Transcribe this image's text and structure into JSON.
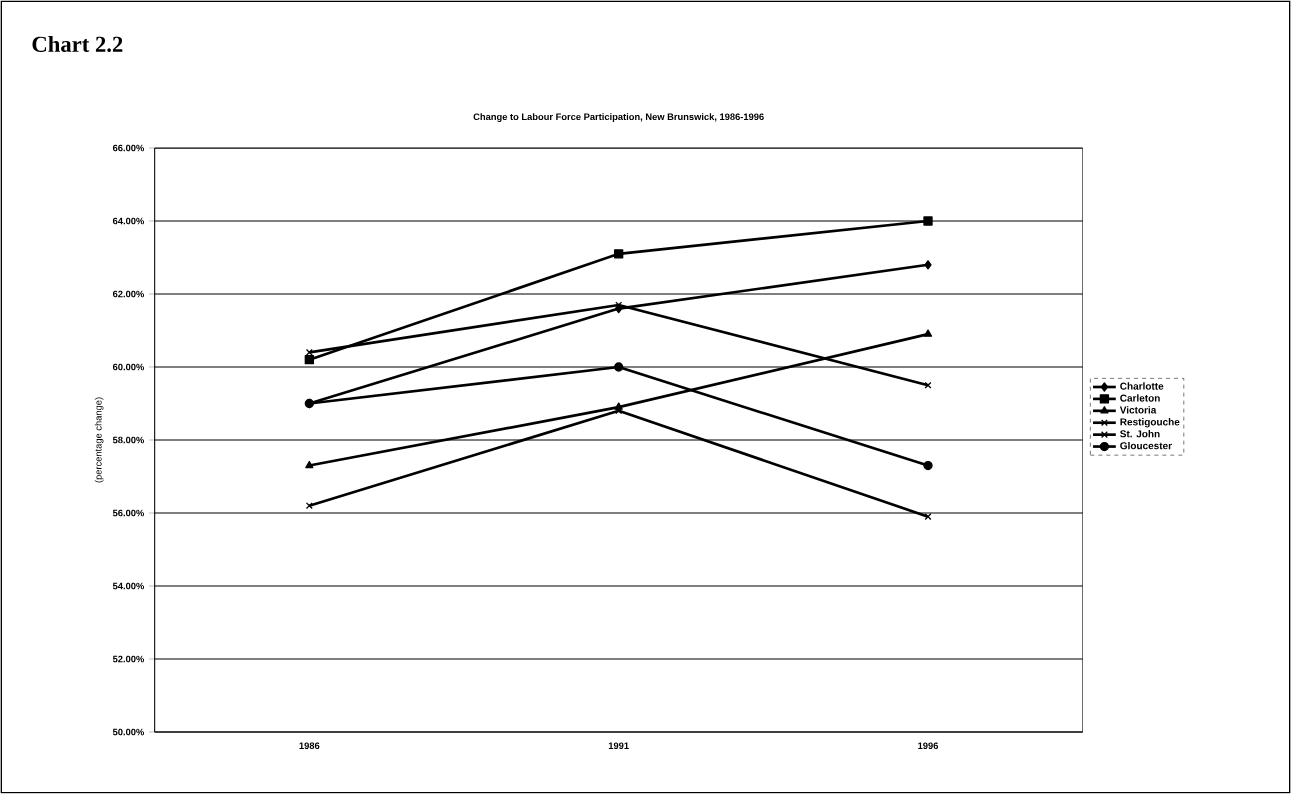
{
  "chart_data": {
    "type": "line",
    "title": "Change to Labour Force Participation, New Brunswick, 1986-1996",
    "annotations": [
      "Chart 2.2"
    ],
    "ylabel": "(percentage change)",
    "categories": [
      "1986",
      "1991",
      "1996"
    ],
    "series": [
      {
        "name": "Charlotte",
        "color": "#000000",
        "marker": "diamond",
        "values": [
          59.0,
          61.6,
          62.8
        ]
      },
      {
        "name": "Carleton",
        "color": "#000000",
        "marker": "square",
        "values": [
          60.2,
          63.1,
          64.0
        ]
      },
      {
        "name": "Victoria",
        "color": "#000000",
        "marker": "triangle",
        "values": [
          57.3,
          58.9,
          60.9
        ]
      },
      {
        "name": "Restigouche",
        "color": "#000000",
        "marker": "cross",
        "values": [
          56.2,
          58.8,
          55.9
        ]
      },
      {
        "name": "St. John",
        "color": "#000000",
        "marker": "cross",
        "values": [
          60.4,
          61.7,
          59.5
        ]
      },
      {
        "name": "Gloucester",
        "color": "#000000",
        "marker": "circle",
        "values": [
          59.0,
          60.0,
          57.3
        ]
      }
    ],
    "ylim": [
      50,
      66
    ],
    "yticks": [
      {
        "value": 50,
        "label": "50.00%"
      },
      {
        "value": 52,
        "label": "52.00%"
      },
      {
        "value": 54,
        "label": "54.00%"
      },
      {
        "value": 56,
        "label": "56.00%"
      },
      {
        "value": 58,
        "label": "58.00%"
      },
      {
        "value": 60,
        "label": "60.00%"
      },
      {
        "value": 62,
        "label": "62.00%"
      },
      {
        "value": 64,
        "label": "64.00%"
      },
      {
        "value": 66,
        "label": "66.00%"
      }
    ],
    "grid": "y",
    "legend": "right",
    "line_style": "solid"
  }
}
